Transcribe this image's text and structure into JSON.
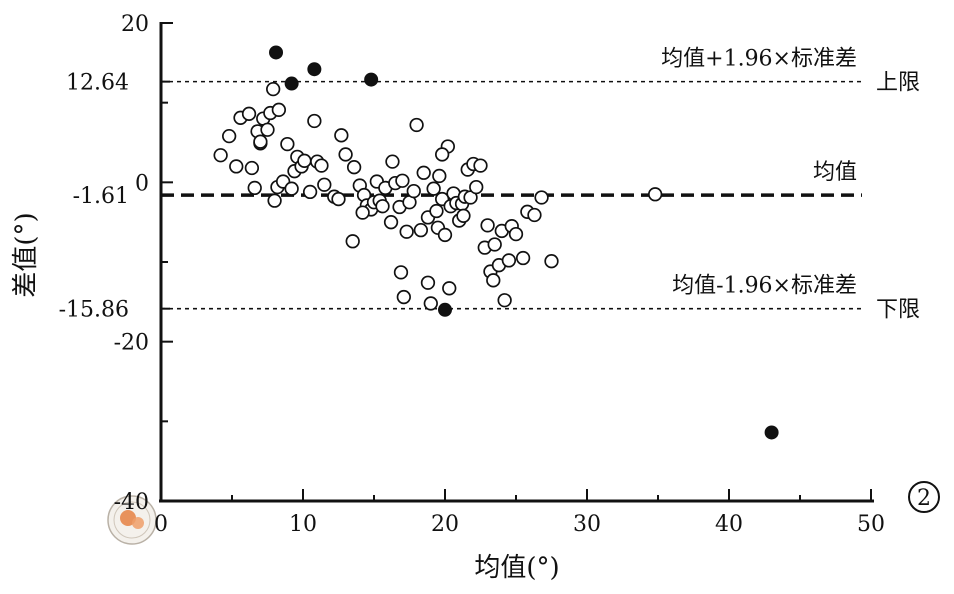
{
  "chart_data": {
    "type": "scatter",
    "title": "",
    "xlabel": "均值(°)",
    "ylabel": "差值(°)",
    "xlim": [
      0,
      50
    ],
    "ylim": [
      -40,
      20
    ],
    "x_ticks": [
      "0",
      "10",
      "20",
      "30",
      "40",
      "50"
    ],
    "y_ticks": [
      "20",
      "0",
      "-20",
      "-40"
    ],
    "grid": false,
    "panel_label": "2",
    "reference_lines": [
      {
        "y": 12.64,
        "value_label": "12.64",
        "name": "均值+1.96×标准差",
        "side_label": "上限",
        "style": "dotted"
      },
      {
        "y": -1.61,
        "value_label": "-1.61",
        "name": "均值",
        "side_label": "",
        "style": "dashed"
      },
      {
        "y": -15.86,
        "value_label": "-15.86",
        "name": "均值-1.96×标准差",
        "side_label": "下限",
        "style": "dotted"
      }
    ],
    "series": [
      {
        "marker": "open-circle",
        "points": [
          [
            4.2,
            3.4
          ],
          [
            4.8,
            5.8
          ],
          [
            5.3,
            2.0
          ],
          [
            5.6,
            8.1
          ],
          [
            6.2,
            8.6
          ],
          [
            6.4,
            1.8
          ],
          [
            6.6,
            -0.7
          ],
          [
            6.8,
            6.4
          ],
          [
            7.0,
            4.9
          ],
          [
            7.2,
            8.0
          ],
          [
            7.5,
            6.6
          ],
          [
            7.7,
            8.7
          ],
          [
            7.9,
            11.7
          ],
          [
            8.0,
            -2.3
          ],
          [
            8.2,
            -0.6
          ],
          [
            8.3,
            9.1
          ],
          [
            8.6,
            0.1
          ],
          [
            8.9,
            4.8
          ],
          [
            9.2,
            -0.8
          ],
          [
            9.4,
            1.4
          ],
          [
            9.6,
            3.2
          ],
          [
            9.9,
            2.0
          ],
          [
            10.1,
            2.7
          ],
          [
            10.5,
            -1.2
          ],
          [
            10.8,
            7.7
          ],
          [
            11.0,
            2.6
          ],
          [
            11.3,
            2.1
          ],
          [
            11.5,
            -0.3
          ],
          [
            12.2,
            -1.8
          ],
          [
            12.7,
            5.9
          ],
          [
            13.0,
            3.5
          ],
          [
            13.5,
            -7.4
          ],
          [
            13.6,
            1.9
          ],
          [
            14.0,
            -0.4
          ],
          [
            14.3,
            -1.6
          ],
          [
            14.5,
            -2.9
          ],
          [
            14.8,
            -3.4
          ],
          [
            15.0,
            -2.5
          ],
          [
            15.2,
            0.1
          ],
          [
            15.4,
            -2.3
          ],
          [
            15.6,
            -3.0
          ],
          [
            15.8,
            -0.7
          ],
          [
            16.3,
            2.6
          ],
          [
            16.5,
            -0.1
          ],
          [
            16.8,
            -3.1
          ],
          [
            16.9,
            -11.3
          ],
          [
            17.1,
            -14.4
          ],
          [
            17.3,
            -6.2
          ],
          [
            17.5,
            -2.5
          ],
          [
            17.8,
            -1.1
          ],
          [
            18.0,
            7.2
          ],
          [
            18.3,
            -6.0
          ],
          [
            18.5,
            1.2
          ],
          [
            18.8,
            -4.4
          ],
          [
            19.0,
            -15.2
          ],
          [
            19.2,
            -0.8
          ],
          [
            19.5,
            -5.7
          ],
          [
            19.6,
            0.8
          ],
          [
            19.8,
            -2.1
          ],
          [
            20.0,
            -6.6
          ],
          [
            20.2,
            4.5
          ],
          [
            20.4,
            -3.0
          ],
          [
            20.6,
            -1.4
          ],
          [
            20.8,
            -2.6
          ],
          [
            21.0,
            -4.8
          ],
          [
            21.2,
            -2.7
          ],
          [
            21.4,
            -1.8
          ],
          [
            21.6,
            1.6
          ],
          [
            21.8,
            -1.9
          ],
          [
            22.0,
            2.3
          ],
          [
            22.2,
            -0.6
          ],
          [
            22.5,
            2.1
          ],
          [
            22.8,
            -8.2
          ],
          [
            23.0,
            -5.4
          ],
          [
            23.2,
            -11.2
          ],
          [
            23.4,
            -12.3
          ],
          [
            23.8,
            -10.4
          ],
          [
            24.0,
            -6.1
          ],
          [
            24.2,
            -14.8
          ],
          [
            24.5,
            -9.8
          ],
          [
            24.7,
            -5.5
          ],
          [
            25.0,
            -6.5
          ],
          [
            25.5,
            -9.5
          ],
          [
            25.8,
            -3.7
          ],
          [
            26.3,
            -4.1
          ],
          [
            26.8,
            -1.9
          ],
          [
            27.5,
            -9.9
          ],
          [
            34.8,
            -1.5
          ],
          [
            7.0,
            5.1
          ],
          [
            19.8,
            3.5
          ],
          [
            21.3,
            -4.2
          ],
          [
            17.0,
            0.2
          ],
          [
            18.8,
            -12.6
          ],
          [
            20.3,
            -13.3
          ],
          [
            12.5,
            -2.1
          ],
          [
            16.2,
            -5.0
          ],
          [
            23.5,
            -7.8
          ],
          [
            19.4,
            -3.6
          ],
          [
            14.2,
            -3.8
          ]
        ]
      },
      {
        "marker": "filled-circle",
        "points": [
          [
            8.1,
            16.3
          ],
          [
            9.2,
            12.4
          ],
          [
            10.8,
            14.2
          ],
          [
            14.8,
            12.9
          ],
          [
            20.0,
            -16.0
          ],
          [
            43.0,
            -31.4
          ]
        ]
      }
    ]
  }
}
